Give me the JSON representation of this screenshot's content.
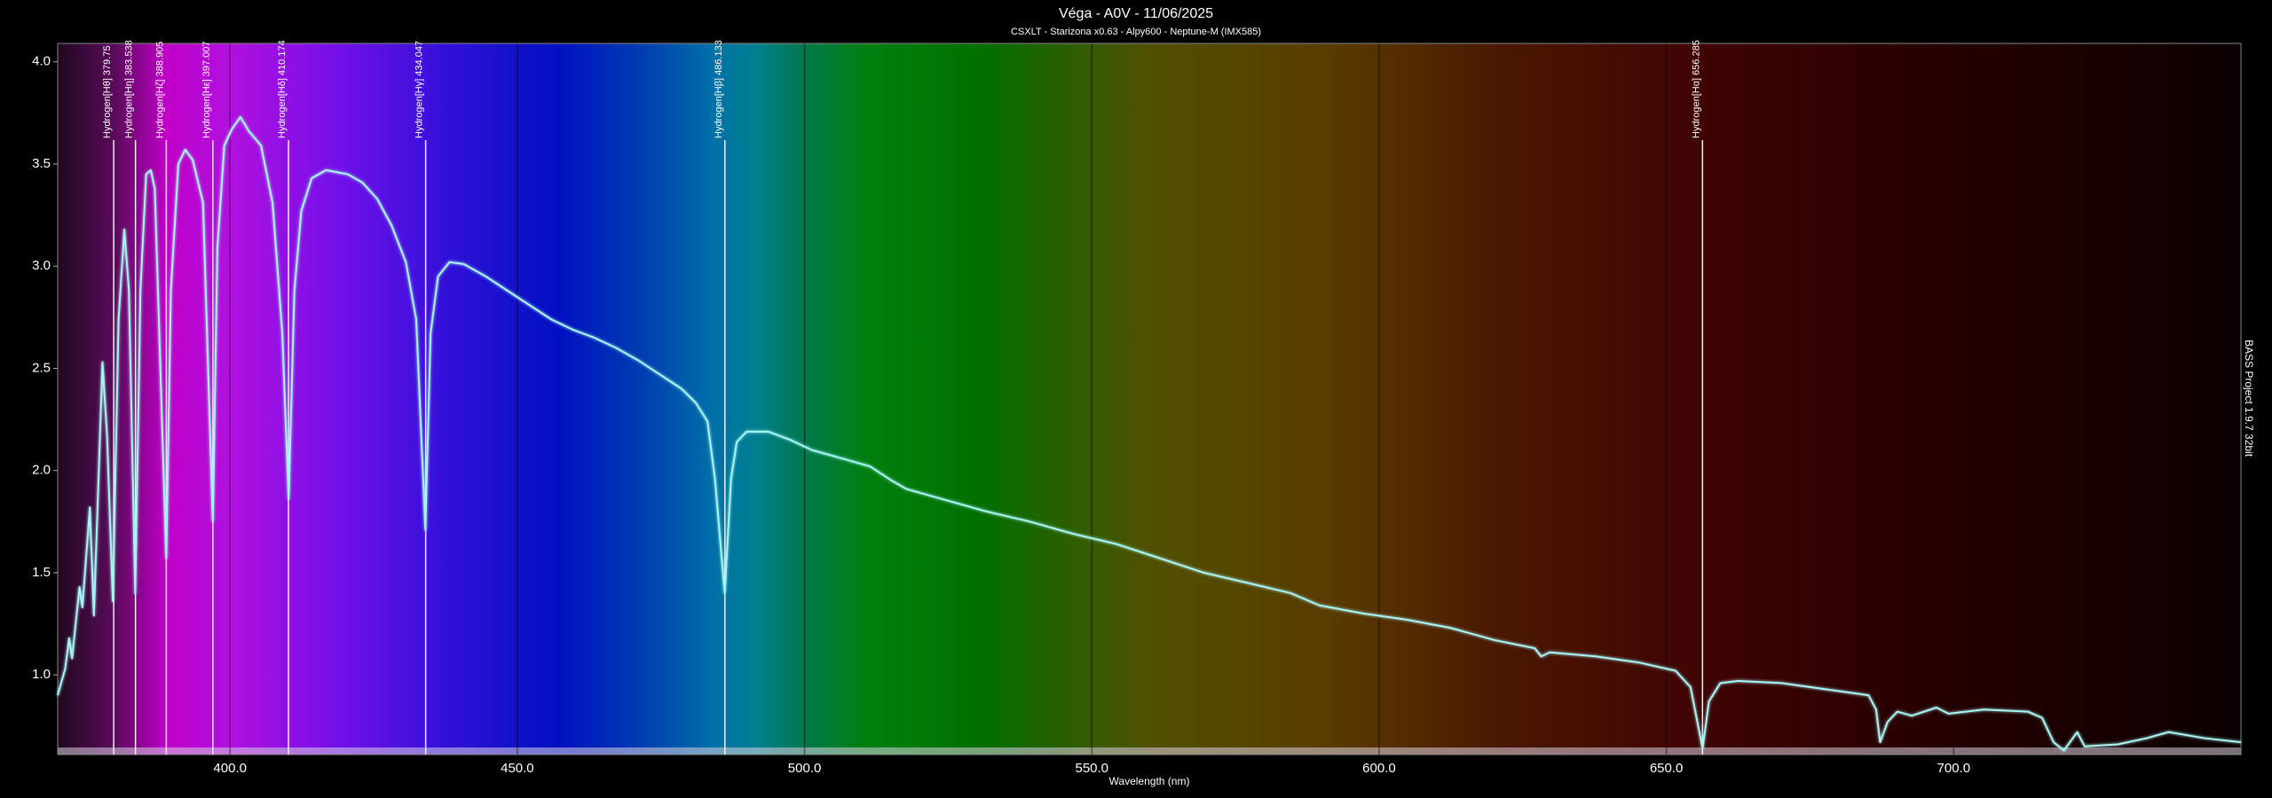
{
  "chart_data": {
    "type": "line",
    "title": "Véga - A0V - 11/06/2025",
    "subtitle": "CSXLT - Starizona x0.63 - Alpy600 - Neptune-M (IMX585)",
    "xlabel": "Wavelength (nm)",
    "watermark": "BASS Project 1.9.7 32bit",
    "color": "#a8f4f4",
    "x": [
      370,
      371.3,
      372,
      372.5,
      373.8,
      374.3,
      375.6,
      376.3,
      377.8,
      378.6,
      379.6,
      380.6,
      381.6,
      382.4,
      383.5,
      384.4,
      385.4,
      386.2,
      386.9,
      388.9,
      389.7,
      391.0,
      392.2,
      393.5,
      395.3,
      397.0,
      397.8,
      399.0,
      400.3,
      401.8,
      403.3,
      405.4,
      407.4,
      409.1,
      410.2,
      411.2,
      412.4,
      414.2,
      416.7,
      420.5,
      423.0,
      425.6,
      428.1,
      430.6,
      432.4,
      434.0,
      434.9,
      436.2,
      438.2,
      440.7,
      444.5,
      448.3,
      452.1,
      455.9,
      459.6,
      463.4,
      467.2,
      471.0,
      474.8,
      478.6,
      481.1,
      483.1,
      484.4,
      486.1,
      487.2,
      488.2,
      489.9,
      493.7,
      497.5,
      501.3,
      506.4,
      511.4,
      515.2,
      517.7,
      524.0,
      531.6,
      539.2,
      546.8,
      554.3,
      561.9,
      569.5,
      577.1,
      584.6,
      589.6,
      597.3,
      604.8,
      612.4,
      620.1,
      627.1,
      628.2,
      629.7,
      637.8,
      645.3,
      651.6,
      654.2,
      656.3,
      657.4,
      659.4,
      662.5,
      670.0,
      677.6,
      685.2,
      686.5,
      687.2,
      688.5,
      690.2,
      692.7,
      697.0,
      699.1,
      705.3,
      712.9,
      715.4,
      717.4,
      719.2,
      721.5,
      722.8,
      728.6,
      733.6,
      737.4,
      743.7,
      750.0
    ],
    "values": [
      0.9,
      1.03,
      1.18,
      1.08,
      1.43,
      1.33,
      1.82,
      1.29,
      2.53,
      2.17,
      1.36,
      2.74,
      3.18,
      2.88,
      1.4,
      2.88,
      3.45,
      3.47,
      3.38,
      1.57,
      2.88,
      3.5,
      3.57,
      3.52,
      3.31,
      1.75,
      3.09,
      3.59,
      3.67,
      3.73,
      3.66,
      3.59,
      3.31,
      2.67,
      1.86,
      2.88,
      3.27,
      3.43,
      3.47,
      3.45,
      3.41,
      3.33,
      3.2,
      3.02,
      2.74,
      1.71,
      2.67,
      2.95,
      3.02,
      3.01,
      2.95,
      2.88,
      2.81,
      2.74,
      2.69,
      2.65,
      2.6,
      2.54,
      2.47,
      2.4,
      2.33,
      2.24,
      1.96,
      1.4,
      1.96,
      2.14,
      2.19,
      2.19,
      2.15,
      2.1,
      2.06,
      2.02,
      1.95,
      1.91,
      1.86,
      1.8,
      1.75,
      1.69,
      1.64,
      1.57,
      1.5,
      1.45,
      1.4,
      1.34,
      1.3,
      1.27,
      1.23,
      1.17,
      1.13,
      1.09,
      1.11,
      1.09,
      1.06,
      1.02,
      0.94,
      0.64,
      0.87,
      0.96,
      0.97,
      0.96,
      0.93,
      0.9,
      0.83,
      0.67,
      0.77,
      0.82,
      0.8,
      0.84,
      0.81,
      0.83,
      0.82,
      0.79,
      0.67,
      0.63,
      0.72,
      0.65,
      0.66,
      0.69,
      0.72,
      0.69,
      0.67
    ],
    "xlim": [
      370,
      750
    ],
    "ylim": [
      0.61,
      4.09
    ],
    "xticks": [
      {
        "value": 400,
        "label": "400.0"
      },
      {
        "value": 450,
        "label": "450.0"
      },
      {
        "value": 500,
        "label": "500.0"
      },
      {
        "value": 550,
        "label": "550.0"
      },
      {
        "value": 600,
        "label": "600.0"
      },
      {
        "value": 650,
        "label": "650.0"
      },
      {
        "value": 700,
        "label": "700.0"
      }
    ],
    "yticks": [
      {
        "value": 1,
        "label": "1.0"
      },
      {
        "value": 1.5,
        "label": "1.5"
      },
      {
        "value": 2,
        "label": "2.0"
      },
      {
        "value": 2.5,
        "label": "2.5"
      },
      {
        "value": 3,
        "label": "3.0"
      },
      {
        "value": 3.5,
        "label": "3.5"
      },
      {
        "value": 4,
        "label": "4.0"
      }
    ],
    "grid": true,
    "annotations": [
      {
        "x": 379.75,
        "label": "Hydrogen[Hθ] 379.75"
      },
      {
        "x": 383.538,
        "label": "Hydrogen[Hη] 383.538"
      },
      {
        "x": 388.905,
        "label": "Hydrogen[Hζ] 388.905"
      },
      {
        "x": 397.007,
        "label": "Hydrogen[Hε] 397.007"
      },
      {
        "x": 410.174,
        "label": "Hydrogen[Hδ] 410.174"
      },
      {
        "x": 434.047,
        "label": "Hydrogen[Hγ] 434.047"
      },
      {
        "x": 486.133,
        "label": "Hydrogen[Hβ] 486.133"
      },
      {
        "x": 656.285,
        "label": "Hydrogen[Hα] 656.285"
      }
    ]
  }
}
